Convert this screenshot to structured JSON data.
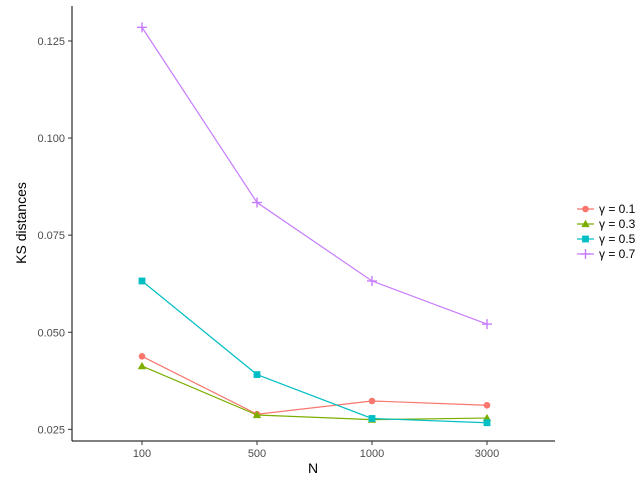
{
  "chart_data": {
    "type": "line",
    "title": "",
    "xlabel": "N",
    "ylabel": "KS distances",
    "categories": [
      "100",
      "500",
      "1000",
      "3000"
    ],
    "ylim": [
      0.022,
      0.134
    ],
    "yticks": [
      0.025,
      0.05,
      0.075,
      0.1,
      0.125
    ],
    "ytick_labels": [
      "0.025",
      "0.050",
      "0.075",
      "0.100",
      "0.125"
    ],
    "grid": false,
    "legend_position": "right",
    "series": [
      {
        "name": "γ = 0.1",
        "color": "#F8766D",
        "marker": "circle",
        "values": [
          0.0438,
          0.0289,
          0.0323,
          0.0312
        ]
      },
      {
        "name": "γ = 0.3",
        "color": "#7CAE00",
        "marker": "triangle",
        "values": [
          0.0413,
          0.0287,
          0.0275,
          0.0279
        ]
      },
      {
        "name": "γ = 0.5",
        "color": "#00BFC4",
        "marker": "square",
        "values": [
          0.0632,
          0.0391,
          0.0278,
          0.0267
        ]
      },
      {
        "name": "γ = 0.7",
        "color": "#C77CFF",
        "marker": "plus",
        "values": [
          0.1285,
          0.0834,
          0.0632,
          0.0521
        ]
      }
    ]
  }
}
